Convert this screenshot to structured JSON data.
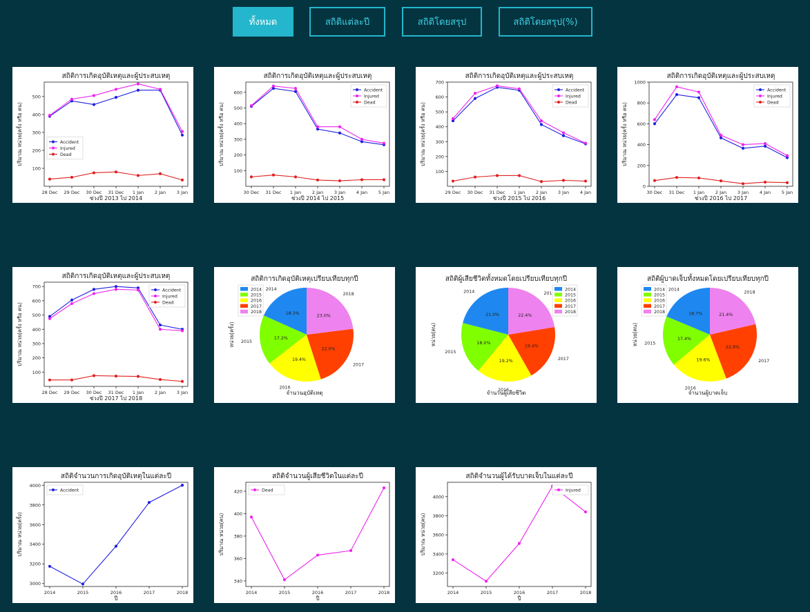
{
  "tabs": [
    {
      "label": "ทั้งหมด",
      "active": true
    },
    {
      "label": "สถิติแต่ละปี",
      "active": false
    },
    {
      "label": "สถิติโดยสรุป",
      "active": false
    },
    {
      "label": "สถิติโดยสรุป(%)",
      "active": false
    }
  ],
  "colors": {
    "background": "#043440",
    "accent": "#24b6cc",
    "accident": "#1f1fe0",
    "injured": "#ee22ee",
    "dead": "#e02020"
  },
  "chart_data": [
    {
      "type": "line",
      "title": "สถิติการเกิดอุบัติเหตุและผู้ประสบเหตุ",
      "xlabel": "ช่วงปี 2013 ไป 2014",
      "ylabel": "ปริมาณ หน่วย(ครั้ง หรือ คน)",
      "categories": [
        "28 Dec",
        "29 Dec",
        "30 Dec",
        "31 Dec",
        "1 Jan",
        "2 Jan",
        "3 Jan"
      ],
      "ylim": [
        0,
        580
      ],
      "yticks": [
        100,
        200,
        300,
        400,
        500
      ],
      "legend": "center-left",
      "series": [
        {
          "name": "Accident",
          "color": "#1f1fe0",
          "values": [
            390,
            475,
            455,
            495,
            535,
            535,
            285
          ]
        },
        {
          "name": "Injured",
          "color": "#ee22ee",
          "values": [
            395,
            485,
            505,
            540,
            570,
            540,
            305
          ]
        },
        {
          "name": "Dead",
          "color": "#e02020",
          "values": [
            40,
            50,
            75,
            80,
            60,
            70,
            35
          ]
        }
      ]
    },
    {
      "type": "line",
      "title": "สถิติการเกิดอุบัติเหตุและผู้ประสบเหตุ",
      "xlabel": "ช่วงปี 2014 ไป 2015",
      "ylabel": "ปริมาณ หน่วย(ครั้ง หรือ คน)",
      "categories": [
        "30 Dec",
        "31 Dec",
        "1 Jan",
        "2 Jan",
        "3 Jan",
        "4 Jan",
        "5 Jan"
      ],
      "ylim": [
        0,
        665
      ],
      "yticks": [
        100,
        200,
        300,
        400,
        500,
        600
      ],
      "legend": "top-right",
      "series": [
        {
          "name": "Accident",
          "color": "#1f1fe0",
          "values": [
            510,
            625,
            605,
            365,
            340,
            285,
            265
          ]
        },
        {
          "name": "Injured",
          "color": "#ee22ee",
          "values": [
            515,
            640,
            625,
            380,
            380,
            300,
            275
          ]
        },
        {
          "name": "Dead",
          "color": "#e02020",
          "values": [
            60,
            72,
            60,
            40,
            35,
            42,
            42
          ]
        }
      ]
    },
    {
      "type": "line",
      "title": "สถิติการเกิดอุบัติเหตุและผู้ประสบเหตุ",
      "xlabel": "ช่วงปี 2015 ไป 2016",
      "ylabel": "ปริมาณ หน่วย(ครั้ง หรือ คน)",
      "categories": [
        "29 Dec",
        "30 Dec",
        "31 Dec",
        "1 Jan",
        "2 Jan",
        "3 Jan",
        "4 Jan"
      ],
      "ylim": [
        0,
        700
      ],
      "yticks": [
        100,
        200,
        300,
        400,
        500,
        600,
        700
      ],
      "legend": "top-right",
      "series": [
        {
          "name": "Accident",
          "color": "#1f1fe0",
          "values": [
            440,
            590,
            665,
            645,
            415,
            340,
            285
          ]
        },
        {
          "name": "Injured",
          "color": "#ee22ee",
          "values": [
            455,
            625,
            675,
            655,
            440,
            360,
            290
          ]
        },
        {
          "name": "Dead",
          "color": "#e02020",
          "values": [
            35,
            62,
            72,
            72,
            32,
            40,
            35
          ]
        }
      ]
    },
    {
      "type": "line",
      "title": "สถิติการเกิดอุบัติเหตุและผู้ประสบเหตุ",
      "xlabel": "ช่วงปี 2016 ไป 2017",
      "ylabel": "ปริมาณ หน่วย(ครั้ง หรือ คน)",
      "categories": [
        "30 Dec",
        "31 Dec",
        "1 Jan",
        "2 Jan",
        "3 Jan",
        "4 Jan",
        "5 Jan"
      ],
      "ylim": [
        0,
        1000
      ],
      "yticks": [
        0,
        200,
        400,
        600,
        800,
        1000
      ],
      "legend": "top-right",
      "series": [
        {
          "name": "Accident",
          "color": "#1f1fe0",
          "values": [
            600,
            880,
            850,
            465,
            365,
            385,
            275
          ]
        },
        {
          "name": "Injured",
          "color": "#ee22ee",
          "values": [
            640,
            955,
            905,
            490,
            400,
            410,
            295
          ]
        },
        {
          "name": "Dead",
          "color": "#e02020",
          "values": [
            55,
            85,
            80,
            52,
            25,
            40,
            35
          ]
        }
      ]
    },
    {
      "type": "line",
      "title": "สถิติการเกิดอุบัติเหตุและผู้ประสบเหตุ",
      "xlabel": "ช่วงปี 2017 ไป 2018",
      "ylabel": "ปริมาณ หน่วย(ครั้ง หรือ คน)",
      "categories": [
        "28 Dec",
        "29 Dec",
        "30 Dec",
        "31 Dec",
        "1 Jan",
        "2 Jan",
        "3 Jan"
      ],
      "ylim": [
        0,
        730
      ],
      "yticks": [
        100,
        200,
        300,
        400,
        500,
        600,
        700
      ],
      "legend": "top-right",
      "series": [
        {
          "name": "Accident",
          "color": "#1f1fe0",
          "values": [
            490,
            605,
            680,
            700,
            690,
            430,
            400
          ]
        },
        {
          "name": "Injured",
          "color": "#ee22ee",
          "values": [
            475,
            580,
            650,
            680,
            675,
            400,
            390
          ]
        },
        {
          "name": "Dead",
          "color": "#e02020",
          "values": [
            45,
            45,
            75,
            72,
            70,
            48,
            35
          ]
        }
      ]
    },
    {
      "type": "pie",
      "title": "สถิติการเกิดอุบัติเหตุเปรียบเทียบทุกปี",
      "xlabel": "จำนวนอุบัติเหตุ",
      "ylabel": "หน่วย(ครั้ง)",
      "legend": "top-left",
      "labels": [
        "2014",
        "2015",
        "2016",
        "2017",
        "2018"
      ],
      "colors": [
        "#1e88f0",
        "#80ff00",
        "#ffff00",
        "#ff4000",
        "#ee82ee"
      ],
      "values": [
        18.3,
        17.2,
        19.4,
        22.0,
        23.0
      ],
      "value_labels": [
        "18.3%",
        "17.2%",
        "19.4%",
        "22.0%",
        "23.0%"
      ]
    },
    {
      "type": "pie",
      "title": "สถิติผู้เสียชีวิตทั้งหมดโดยเปรียบเทียบทุกปี",
      "xlabel": "จำนวนผู้เสียชีวิต",
      "ylabel": "หน่วย(คน)",
      "legend": "top-right",
      "labels": [
        "2014",
        "2015",
        "2016",
        "2017",
        "2018"
      ],
      "colors": [
        "#1e88f0",
        "#80ff00",
        "#ffff00",
        "#ff4000",
        "#ee82ee"
      ],
      "values": [
        21.0,
        18.0,
        19.2,
        19.4,
        22.4
      ],
      "value_labels": [
        "21.0%",
        "18.0%",
        "19.2%",
        "19.4%",
        "22.4%"
      ]
    },
    {
      "type": "pie",
      "title": "สถิติผู้บาดเจ็บทั้งหมดโดยเปรียบเทียบทุกปี",
      "xlabel": "จำนวนผู้บาดเจ็บ",
      "ylabel": "หน่วย(คน)",
      "legend": "top-left",
      "labels": [
        "2014",
        "2015",
        "2016",
        "2017",
        "2018"
      ],
      "colors": [
        "#1e88f0",
        "#80ff00",
        "#ffff00",
        "#ff4000",
        "#ee82ee"
      ],
      "values": [
        18.7,
        17.4,
        19.6,
        22.9,
        21.4
      ],
      "value_labels": [
        "18.7%",
        "17.4%",
        "19.6%",
        "22.9%",
        "21.4%"
      ]
    },
    {
      "type": "line",
      "title": "สถิติจำนวนการเกิดอุบัติเหตุในแต่ละปี",
      "xlabel": "ปี",
      "ylabel": "ปริมาณ หน่วย(ครั้ง)",
      "categories": [
        "2014",
        "2015",
        "2016",
        "2017",
        "2018"
      ],
      "ylim": [
        2970,
        4030
      ],
      "yticks": [
        3000,
        3200,
        3400,
        3600,
        3800,
        4000
      ],
      "legend": "top-left",
      "series": [
        {
          "name": "Accident",
          "color": "#1f1fe0",
          "values": [
            3175,
            2995,
            3380,
            3825,
            4000
          ]
        }
      ]
    },
    {
      "type": "line",
      "title": "สถิติจำนวนผู้เสียชีวิตในแต่ละปี",
      "xlabel": "ปี",
      "ylabel": "ปริมาณ หน่วย(คน)",
      "categories": [
        "2014",
        "2015",
        "2016",
        "2017",
        "2018"
      ],
      "ylim": [
        335,
        428
      ],
      "yticks": [
        340,
        360,
        380,
        400,
        420
      ],
      "legend": "top-left",
      "series": [
        {
          "name": "Dead",
          "color": "#ee22ee",
          "values": [
            397,
            341,
            363,
            367,
            423
          ]
        }
      ]
    },
    {
      "type": "line",
      "title": "สถิติจำนวนผู้ได้รับบาดเจ็บในแต่ละปี",
      "xlabel": "ปี",
      "ylabel": "ปริมาณ หน่วย(คน)",
      "categories": [
        "2014",
        "2015",
        "2016",
        "2017",
        "2018"
      ],
      "ylim": [
        3060,
        4150
      ],
      "yticks": [
        3200,
        3400,
        3600,
        3800,
        4000
      ],
      "legend": "top-right",
      "series": [
        {
          "name": "Injured",
          "color": "#ee22ee",
          "values": [
            3340,
            3115,
            3510,
            4110,
            3840
          ]
        }
      ]
    }
  ]
}
